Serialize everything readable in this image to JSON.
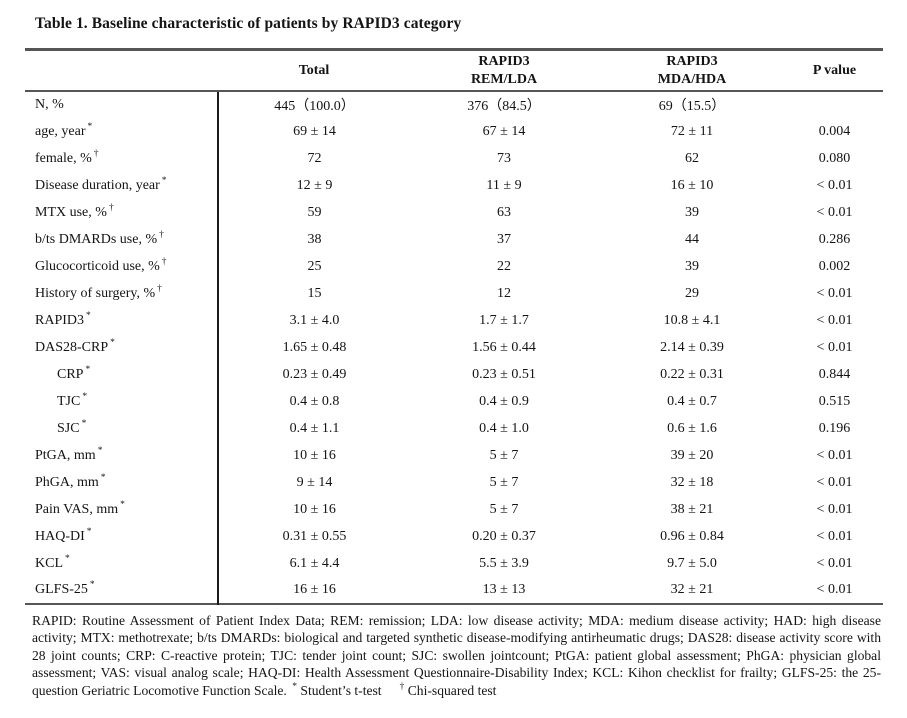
{
  "title": "Table 1. Baseline characteristic of patients by RAPID3 category",
  "colors": {
    "background": "#ffffff",
    "text": "#141414",
    "horizontal_rule": "#565656",
    "vertical_divider": "#1a1a1a"
  },
  "table": {
    "columns": [
      {
        "line1": "",
        "line2": ""
      },
      {
        "line1": "Total",
        "line2": ""
      },
      {
        "line1": "RAPID3",
        "line2": "REM/LDA"
      },
      {
        "line1": "RAPID3",
        "line2": "MDA/HDA"
      },
      {
        "line1": "P value",
        "line2": ""
      }
    ],
    "rows": [
      {
        "label": "N, %",
        "marker": "",
        "indent": false,
        "total": "445（100.0）",
        "rem_lda": "376（84.5）",
        "mda_hda": "69（15.5）",
        "p_value": ""
      },
      {
        "label": "age, year",
        "marker": "*",
        "indent": false,
        "total": "69 ± 14",
        "rem_lda": "67 ± 14",
        "mda_hda": "72 ± 11",
        "p_value": "0.004"
      },
      {
        "label": "female, %",
        "marker": "†",
        "indent": false,
        "total": "72",
        "rem_lda": "73",
        "mda_hda": "62",
        "p_value": "0.080"
      },
      {
        "label": "Disease duration, year",
        "marker": "*",
        "indent": false,
        "total": "12 ± 9",
        "rem_lda": "11 ± 9",
        "mda_hda": "16 ± 10",
        "p_value": "< 0.01"
      },
      {
        "label": "MTX use, %",
        "marker": "†",
        "indent": false,
        "total": "59",
        "rem_lda": "63",
        "mda_hda": "39",
        "p_value": "< 0.01"
      },
      {
        "label": "b/ts DMARDs use, %",
        "marker": "†",
        "indent": false,
        "total": "38",
        "rem_lda": "37",
        "mda_hda": "44",
        "p_value": "0.286"
      },
      {
        "label": "Glucocorticoid use, %",
        "marker": "†",
        "indent": false,
        "total": "25",
        "rem_lda": "22",
        "mda_hda": "39",
        "p_value": "0.002"
      },
      {
        "label": "History of surgery, %",
        "marker": "†",
        "indent": false,
        "total": "15",
        "rem_lda": "12",
        "mda_hda": "29",
        "p_value": "< 0.01"
      },
      {
        "label": "RAPID3",
        "marker": "*",
        "indent": false,
        "total": "3.1 ± 4.0",
        "rem_lda": "1.7 ± 1.7",
        "mda_hda": "10.8 ± 4.1",
        "p_value": "< 0.01"
      },
      {
        "label": "DAS28-CRP",
        "marker": "*",
        "indent": false,
        "total": "1.65 ± 0.48",
        "rem_lda": "1.56 ± 0.44",
        "mda_hda": "2.14 ± 0.39",
        "p_value": "< 0.01"
      },
      {
        "label": "CRP",
        "marker": "*",
        "indent": true,
        "total": "0.23 ± 0.49",
        "rem_lda": "0.23 ± 0.51",
        "mda_hda": "0.22 ± 0.31",
        "p_value": "0.844"
      },
      {
        "label": "TJC",
        "marker": "*",
        "indent": true,
        "total": "0.4 ± 0.8",
        "rem_lda": "0.4 ± 0.9",
        "mda_hda": "0.4 ± 0.7",
        "p_value": "0.515"
      },
      {
        "label": "SJC",
        "marker": "*",
        "indent": true,
        "total": "0.4 ± 1.1",
        "rem_lda": "0.4 ± 1.0",
        "mda_hda": "0.6 ± 1.6",
        "p_value": "0.196"
      },
      {
        "label": "PtGA, mm",
        "marker": "*",
        "indent": false,
        "total": "10 ± 16",
        "rem_lda": "5 ± 7",
        "mda_hda": "39 ± 20",
        "p_value": "< 0.01"
      },
      {
        "label": "PhGA, mm",
        "marker": "*",
        "indent": false,
        "total": "9 ± 14",
        "rem_lda": "5 ± 7",
        "mda_hda": "32 ± 18",
        "p_value": "< 0.01"
      },
      {
        "label": "Pain VAS, mm",
        "marker": "*",
        "indent": false,
        "total": "10 ± 16",
        "rem_lda": "5 ± 7",
        "mda_hda": "38 ± 21",
        "p_value": "< 0.01"
      },
      {
        "label": "HAQ-DI",
        "marker": "*",
        "indent": false,
        "total": "0.31 ± 0.55",
        "rem_lda": "0.20 ± 0.37",
        "mda_hda": "0.96 ± 0.84",
        "p_value": "< 0.01"
      },
      {
        "label": "KCL",
        "marker": "*",
        "indent": false,
        "total": "6.1 ± 4.4",
        "rem_lda": "5.5 ± 3.9",
        "mda_hda": "9.7 ± 5.0",
        "p_value": "< 0.01"
      },
      {
        "label": "GLFS-25",
        "marker": "*",
        "indent": false,
        "total": "16 ± 16",
        "rem_lda": "13 ± 13",
        "mda_hda": "32 ± 21",
        "p_value": "< 0.01"
      }
    ]
  },
  "footnote": {
    "text": "RAPID: Routine Assessment of Patient Index Data; REM: remission; LDA: low disease activity; MDA: medium disease activity; HAD: high disease activity; MTX: methotrexate; b/ts DMARDs: biological and targeted synthetic disease-modifying antirheumatic drugs; DAS28: disease activity score with 28 joint counts; CRP: C-reactive protein; TJC: tender joint count; SJC: swollen jointcount; PtGA: patient global assessment; PhGA: physician global assessment; VAS: visual analog scale; HAQ-DI: Health Assessment Questionnaire-Disability Index; KCL: Kihon checklist for frailty; GLFS-25: the 25-question Geriatric Locomotive Function Scale.",
    "test1_marker": "*",
    "test1_label": "Student’s t-test",
    "test2_marker": "†",
    "test2_label": "Chi-squared test"
  }
}
